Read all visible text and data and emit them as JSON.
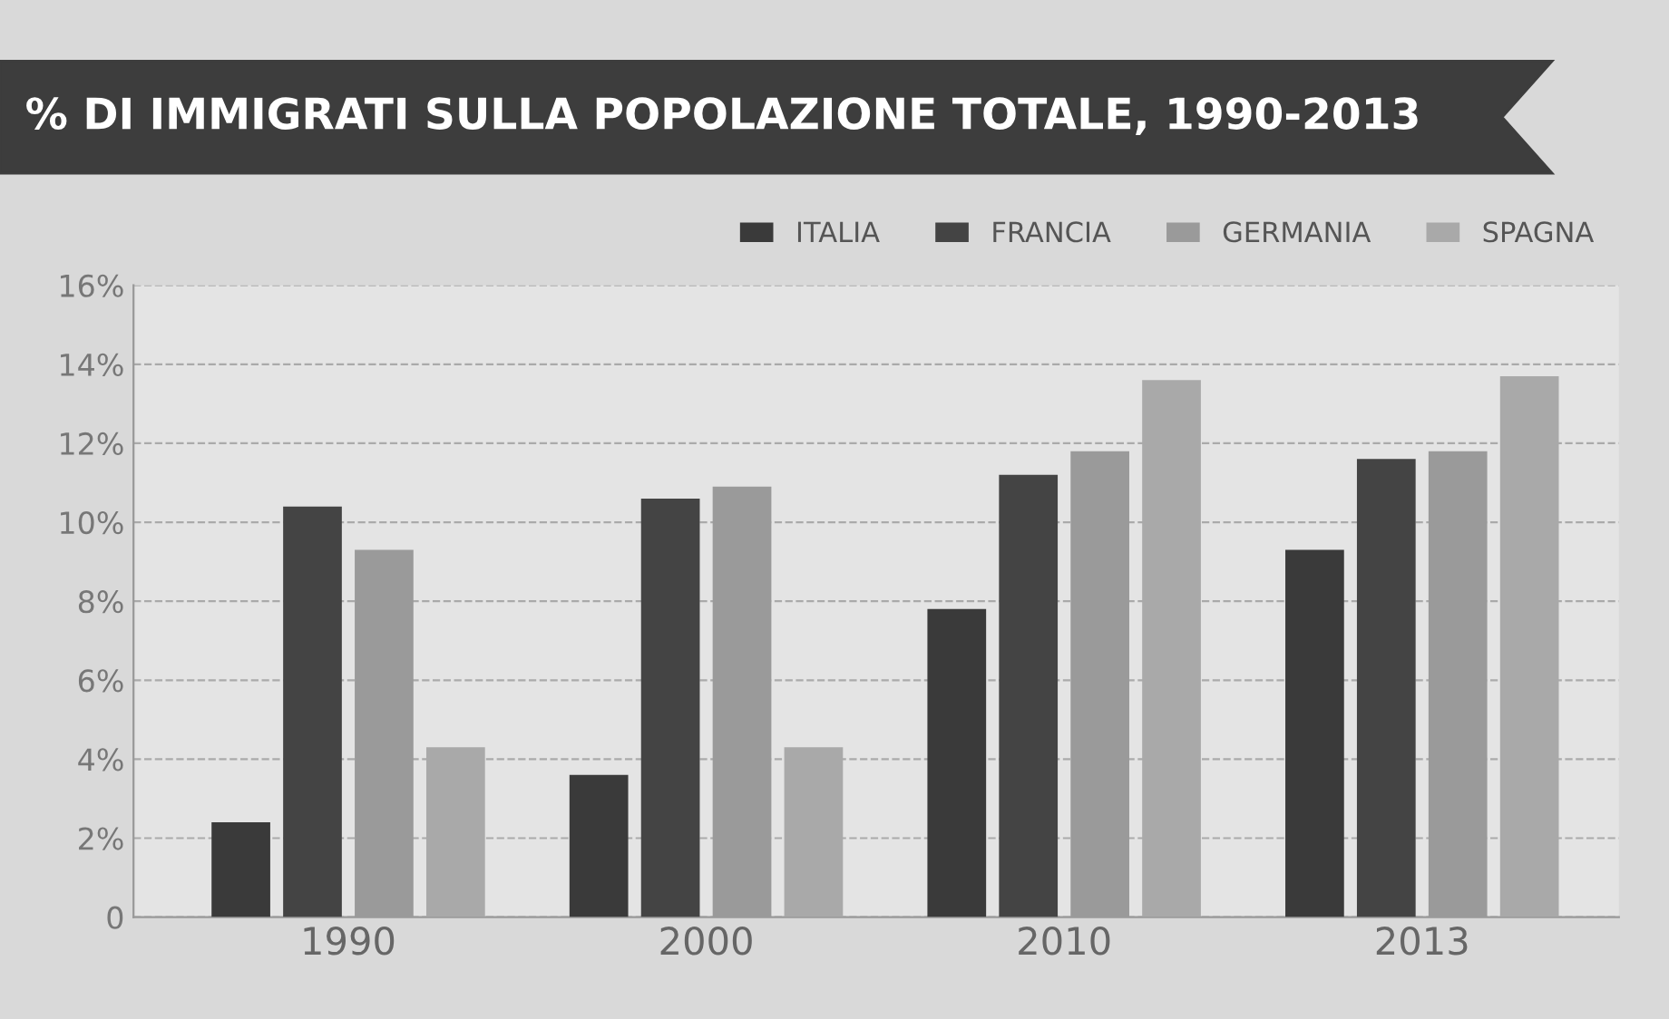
{
  "chart_data": {
    "type": "bar",
    "title": "% DI IMMIGRATI SULLA POPOLAZIONE TOTALE, 1990-2013",
    "categories": [
      "1990",
      "2000",
      "2010",
      "2013"
    ],
    "series": [
      {
        "name": "ITALIA",
        "color": "#3a3a3a",
        "values": [
          2.4,
          3.6,
          7.8,
          9.3
        ]
      },
      {
        "name": "FRANCIA",
        "color": "#444444",
        "values": [
          10.4,
          10.6,
          11.2,
          11.6
        ]
      },
      {
        "name": "GERMANIA",
        "color": "#9a9a9a",
        "values": [
          9.3,
          10.9,
          11.8,
          11.8
        ]
      },
      {
        "name": "SPAGNA",
        "color": "#a9a9a9",
        "values": [
          4.3,
          4.3,
          13.6,
          13.7
        ]
      }
    ],
    "ylim": [
      0,
      16
    ],
    "yticks": [
      {
        "value": 0,
        "label": "0"
      },
      {
        "value": 2,
        "label": "2%"
      },
      {
        "value": 4,
        "label": "4%"
      },
      {
        "value": 6,
        "label": "6%"
      },
      {
        "value": 8,
        "label": "8%"
      },
      {
        "value": 10,
        "label": "10%"
      },
      {
        "value": 12,
        "label": "12%"
      },
      {
        "value": 14,
        "label": "14%"
      },
      {
        "value": 16,
        "label": "16%"
      }
    ],
    "grid": "y",
    "legend": "top right"
  }
}
